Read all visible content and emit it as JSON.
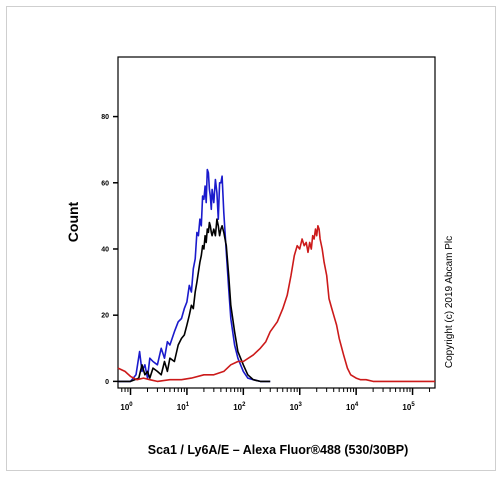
{
  "chart_data": {
    "type": "line",
    "title": "",
    "xlabel": "Sca1 / Ly6A/E – Alexa Fluor®488 (530/30BP)",
    "ylabel": "Count",
    "x_scale": "log",
    "xlim": [
      0.6,
      250000
    ],
    "ylim": [
      -2,
      98
    ],
    "y_ticks": [
      "0",
      "20",
      "40",
      "60",
      "80"
    ],
    "x_ticks": [
      {
        "base": "10",
        "exp": "0"
      },
      {
        "base": "10",
        "exp": "1"
      },
      {
        "base": "10",
        "exp": "2"
      },
      {
        "base": "10",
        "exp": "3"
      },
      {
        "base": "10",
        "exp": "4"
      },
      {
        "base": "10",
        "exp": "5"
      }
    ],
    "annotation": "Copyright (c) 2019 Abcam Plc",
    "grid": false,
    "series": [
      {
        "color": "#1a1acc",
        "x": [
          0.6,
          1.0,
          1.25,
          1.45,
          1.6,
          1.8,
          2.0,
          2.2,
          2.5,
          3.0,
          3.5,
          4.0,
          4.5,
          5,
          6,
          7,
          8,
          9,
          10,
          11,
          12,
          13,
          14,
          15,
          16,
          17,
          18,
          19,
          20,
          21,
          22,
          23,
          24,
          25,
          26,
          27,
          28,
          30,
          32,
          34,
          36,
          38,
          40,
          42,
          45,
          50,
          55,
          60,
          70,
          80,
          100,
          120,
          150,
          200,
          300
        ],
        "y": [
          0,
          0,
          2,
          9,
          3,
          5,
          1,
          7,
          6,
          5,
          10,
          7,
          12,
          11,
          15,
          18,
          19,
          22,
          24,
          29,
          27,
          34,
          37,
          45,
          44,
          49,
          47,
          56,
          55,
          59,
          54,
          64,
          63,
          58,
          56,
          52,
          58,
          54,
          61,
          57,
          49,
          60,
          60,
          62,
          51,
          39,
          28,
          19,
          11,
          7,
          3,
          1,
          0.5,
          0,
          0
        ]
      },
      {
        "color": "#000000",
        "x": [
          0.6,
          1.0,
          1.4,
          1.6,
          1.8,
          2.0,
          2.2,
          2.5,
          3.0,
          3.5,
          4.0,
          4.5,
          5,
          6,
          7,
          8,
          9,
          10,
          11,
          12,
          13,
          14,
          15,
          16,
          17,
          18,
          19,
          20,
          21,
          22,
          23,
          24,
          25,
          26,
          27,
          28,
          30,
          32,
          34,
          36,
          38,
          40,
          42,
          45,
          50,
          55,
          60,
          70,
          80,
          100,
          120,
          150,
          200,
          300
        ],
        "y": [
          0,
          0,
          1,
          5,
          2,
          3,
          1,
          4,
          3,
          2,
          6,
          3,
          7,
          6,
          11,
          13,
          14,
          17,
          20,
          23,
          22,
          27,
          30,
          33,
          36,
          38,
          41,
          40,
          44,
          42,
          46,
          45,
          48,
          47,
          45,
          44,
          46,
          44,
          49,
          47,
          44,
          46,
          47,
          45,
          41,
          32,
          23,
          15,
          9,
          5,
          2,
          0.5,
          0,
          0
        ]
      },
      {
        "color": "#cc1a1a",
        "x": [
          0.6,
          0.8,
          1.0,
          1.3,
          1.7,
          2.2,
          3,
          5,
          8,
          12,
          20,
          30,
          45,
          60,
          80,
          100,
          150,
          200,
          250,
          300,
          400,
          500,
          600,
          700,
          800,
          900,
          1000,
          1100,
          1200,
          1300,
          1400,
          1500,
          1600,
          1700,
          1800,
          1900,
          2000,
          2100,
          2200,
          2300,
          2500,
          2700,
          3000,
          3300,
          3700,
          4000,
          4500,
          5000,
          6000,
          7000,
          8000,
          10000,
          12000,
          15000,
          20000,
          30000,
          60000,
          250000
        ],
        "y": [
          4,
          3,
          1.5,
          0.5,
          1,
          0.5,
          0,
          0.5,
          0.5,
          1,
          2,
          2,
          3,
          5,
          6,
          6,
          8,
          10,
          12,
          15,
          18,
          22,
          26,
          32,
          38,
          41,
          40,
          43,
          41,
          42,
          39,
          42,
          40,
          44,
          43,
          46,
          44,
          47,
          46,
          43,
          40,
          36,
          32,
          25,
          22,
          20,
          17,
          13,
          8,
          4,
          2,
          1,
          0.5,
          0.5,
          0,
          0,
          0,
          0
        ]
      }
    ]
  }
}
